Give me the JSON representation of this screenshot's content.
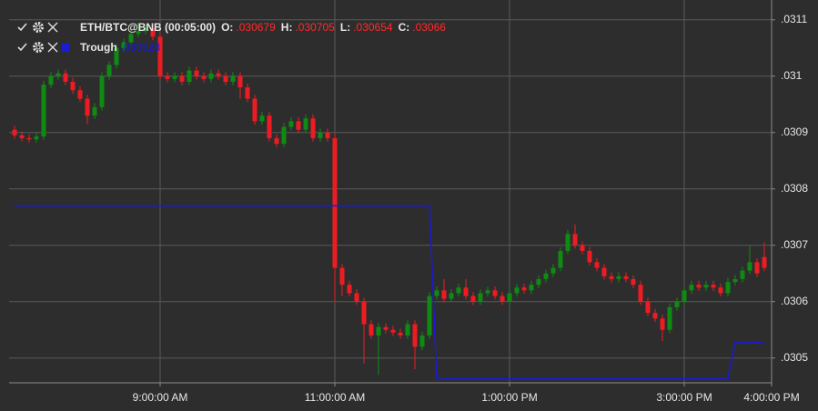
{
  "chart_data": {
    "type": "candlestick",
    "x": [
      "7:20:00 AM",
      "7:25:00 AM",
      "7:30:00 AM",
      "7:35:00 AM",
      "7:40:00 AM",
      "7:45:00 AM",
      "7:50:00 AM",
      "7:55:00 AM",
      "8:00:00 AM",
      "8:05:00 AM",
      "8:10:00 AM",
      "8:15:00 AM",
      "8:20:00 AM",
      "8:25:00 AM",
      "8:30:00 AM",
      "8:35:00 AM",
      "8:40:00 AM",
      "8:45:00 AM",
      "8:50:00 AM",
      "8:55:00 AM",
      "9:00:00 AM",
      "9:05:00 AM",
      "9:10:00 AM",
      "9:15:00 AM",
      "9:20:00 AM",
      "9:25:00 AM",
      "9:30:00 AM",
      "9:35:00 AM",
      "9:40:00 AM",
      "9:45:00 AM",
      "9:50:00 AM",
      "9:55:00 AM",
      "10:00:00 AM",
      "10:05:00 AM",
      "10:10:00 AM",
      "10:15:00 AM",
      "10:20:00 AM",
      "10:25:00 AM",
      "10:30:00 AM",
      "10:35:00 AM",
      "10:40:00 AM",
      "10:45:00 AM",
      "10:50:00 AM",
      "10:55:00 AM",
      "11:00:00 AM",
      "11:05:00 AM",
      "11:10:00 AM",
      "11:15:00 AM",
      "11:20:00 AM",
      "11:25:00 AM",
      "11:30:00 AM",
      "11:35:00 AM",
      "11:40:00 AM",
      "11:45:00 AM",
      "11:50:00 AM",
      "11:55:00 AM",
      "12:00:00 PM",
      "12:05:00 PM",
      "12:10:00 PM",
      "12:15:00 PM",
      "12:20:00 PM",
      "12:25:00 PM",
      "12:30:00 PM",
      "12:35:00 PM",
      "12:40:00 PM",
      "12:45:00 PM",
      "12:50:00 PM",
      "12:55:00 PM",
      "1:00:00 PM",
      "1:05:00 PM",
      "1:10:00 PM",
      "1:15:00 PM",
      "1:20:00 PM",
      "1:25:00 PM",
      "1:30:00 PM",
      "1:35:00 PM",
      "1:40:00 PM",
      "1:45:00 PM",
      "1:50:00 PM",
      "1:55:00 PM",
      "2:00:00 PM",
      "2:05:00 PM",
      "2:10:00 PM",
      "2:15:00 PM",
      "2:20:00 PM",
      "2:25:00 PM",
      "2:30:00 PM",
      "2:35:00 PM",
      "2:40:00 PM",
      "2:45:00 PM",
      "2:50:00 PM",
      "2:55:00 PM",
      "3:00:00 PM",
      "3:05:00 PM",
      "3:10:00 PM",
      "3:15:00 PM",
      "3:20:00 PM",
      "3:25:00 PM",
      "3:30:00 PM",
      "3:35:00 PM",
      "3:40:00 PM",
      "3:45:00 PM",
      "3:50:00 PM",
      "3:55:00 PM"
    ],
    "xlim": [
      "7:16:15 AM",
      "4:00:00 PM"
    ],
    "xticks": [
      "9:00:00 AM",
      "11:00:00 AM",
      "1:00:00 PM",
      "3:00:00 PM",
      "4:00:00 PM"
    ],
    "ylim": [
      0.030456,
      0.031119
    ],
    "yticks": [
      {
        "value": 0.0305,
        "label": ".0305"
      },
      {
        "value": 0.0306,
        "label": ".0306"
      },
      {
        "value": 0.0307,
        "label": ".0307"
      },
      {
        "value": 0.0308,
        "label": ".0308"
      },
      {
        "value": 0.0309,
        "label": ".0309"
      },
      {
        "value": 0.031,
        "label": ".031"
      },
      {
        "value": 0.0311,
        "label": ".0311"
      }
    ],
    "grid": true,
    "series": [
      {
        "name": "ETH/BTC@BNB (00:05:00)",
        "type": "candlestick",
        "up_color": "#0f8a12",
        "down_color": "#ee1c22",
        "open": [
          0.030905,
          0.030895,
          0.03089,
          0.030888,
          0.030893,
          0.030985,
          0.031,
          0.031005,
          0.03099,
          0.030975,
          0.03096,
          0.03093,
          0.030945,
          0.031,
          0.03102,
          0.03105,
          0.03106,
          0.031075,
          0.03108,
          0.031085,
          0.03107,
          0.031,
          0.030995,
          0.031,
          0.03099,
          0.03101,
          0.031,
          0.030995,
          0.031005,
          0.031,
          0.03099,
          0.031,
          0.03098,
          0.03096,
          0.03092,
          0.03093,
          0.03089,
          0.03088,
          0.03091,
          0.03092,
          0.030905,
          0.030925,
          0.03089,
          0.0309,
          0.03089,
          0.03066,
          0.03063,
          0.030615,
          0.0306,
          0.03056,
          0.03054,
          0.030555,
          0.03055,
          0.030545,
          0.03054,
          0.03056,
          0.03052,
          0.03054,
          0.03061,
          0.03062,
          0.030605,
          0.030615,
          0.030625,
          0.03061,
          0.0306,
          0.030615,
          0.03062,
          0.03061,
          0.0306,
          0.030615,
          0.030625,
          0.03062,
          0.03063,
          0.03064,
          0.03065,
          0.03066,
          0.03069,
          0.03072,
          0.0307,
          0.03069,
          0.03067,
          0.03066,
          0.030645,
          0.03064,
          0.030645,
          0.03064,
          0.03063,
          0.0306,
          0.03058,
          0.03057,
          0.03055,
          0.03059,
          0.0306,
          0.03062,
          0.03063,
          0.030625,
          0.03063,
          0.030625,
          0.030615,
          0.030635,
          0.03064,
          0.030655,
          0.03067,
          0.030679
        ],
        "high": [
          0.030912,
          0.030902,
          0.030897,
          0.0309,
          0.030992,
          0.031007,
          0.031012,
          0.031012,
          0.030997,
          0.030982,
          0.030967,
          0.030952,
          0.031007,
          0.031027,
          0.031057,
          0.031067,
          0.031082,
          0.031095,
          0.031092,
          0.031092,
          0.031077,
          0.031007,
          0.031007,
          0.031007,
          0.031017,
          0.031017,
          0.031007,
          0.031012,
          0.031012,
          0.031007,
          0.031007,
          0.031007,
          0.030987,
          0.030967,
          0.030937,
          0.030937,
          0.030897,
          0.030917,
          0.030927,
          0.030927,
          0.030932,
          0.030932,
          0.030907,
          0.030907,
          0.030897,
          0.030667,
          0.030637,
          0.030622,
          0.030607,
          0.030567,
          0.030562,
          0.030562,
          0.030557,
          0.030552,
          0.030567,
          0.030567,
          0.030547,
          0.030617,
          0.030627,
          0.03064,
          0.030622,
          0.030632,
          0.03064,
          0.030617,
          0.030622,
          0.030627,
          0.030627,
          0.030617,
          0.030622,
          0.030632,
          0.030632,
          0.030637,
          0.030647,
          0.030657,
          0.030667,
          0.030697,
          0.030727,
          0.030737,
          0.030707,
          0.030697,
          0.030677,
          0.030667,
          0.030652,
          0.030652,
          0.030652,
          0.030647,
          0.030637,
          0.030607,
          0.030587,
          0.030577,
          0.030597,
          0.030607,
          0.030627,
          0.030637,
          0.030637,
          0.030637,
          0.030637,
          0.030632,
          0.030642,
          0.030647,
          0.030662,
          0.0307,
          0.030677,
          0.030705
        ],
        "low": [
          0.030889,
          0.030884,
          0.030882,
          0.030882,
          0.030887,
          0.030979,
          0.030994,
          0.030984,
          0.030969,
          0.030954,
          0.030915,
          0.030924,
          0.030939,
          0.030994,
          0.031014,
          0.031044,
          0.031054,
          0.031069,
          0.031074,
          0.031064,
          0.030994,
          0.030989,
          0.030989,
          0.030984,
          0.030984,
          0.030994,
          0.030989,
          0.030989,
          0.030994,
          0.030984,
          0.030984,
          0.03096,
          0.030954,
          0.030914,
          0.030914,
          0.030884,
          0.030874,
          0.030874,
          0.030904,
          0.030899,
          0.030899,
          0.030884,
          0.030884,
          0.030884,
          0.0306,
          0.03061,
          0.030609,
          0.030594,
          0.03049,
          0.030534,
          0.03047,
          0.030544,
          0.030539,
          0.030534,
          0.030534,
          0.03048,
          0.030514,
          0.030534,
          0.030604,
          0.030599,
          0.030599,
          0.030609,
          0.030604,
          0.030594,
          0.030594,
          0.030609,
          0.030604,
          0.030594,
          0.030594,
          0.030609,
          0.030614,
          0.030614,
          0.030624,
          0.030634,
          0.030644,
          0.030654,
          0.030684,
          0.030694,
          0.030684,
          0.030664,
          0.030654,
          0.030639,
          0.030634,
          0.030634,
          0.030634,
          0.030624,
          0.030594,
          0.030574,
          0.030564,
          0.03053,
          0.030544,
          0.030584,
          0.030594,
          0.030614,
          0.030619,
          0.030619,
          0.030619,
          0.030609,
          0.030609,
          0.030629,
          0.030634,
          0.030649,
          0.030644,
          0.030654
        ],
        "close": [
          0.030895,
          0.03089,
          0.030888,
          0.030893,
          0.030985,
          0.031,
          0.031005,
          0.03099,
          0.030975,
          0.03096,
          0.03093,
          0.030945,
          0.031,
          0.03102,
          0.03105,
          0.03106,
          0.031075,
          0.03108,
          0.031085,
          0.03107,
          0.031,
          0.030995,
          0.031,
          0.03099,
          0.03101,
          0.031,
          0.030995,
          0.031005,
          0.031,
          0.03099,
          0.031,
          0.03098,
          0.03096,
          0.03092,
          0.03093,
          0.03089,
          0.03088,
          0.03091,
          0.03092,
          0.030905,
          0.030925,
          0.03089,
          0.0309,
          0.03089,
          0.03066,
          0.03063,
          0.030615,
          0.0306,
          0.03056,
          0.03054,
          0.030555,
          0.03055,
          0.030545,
          0.03054,
          0.03056,
          0.03052,
          0.03054,
          0.03061,
          0.03062,
          0.030605,
          0.030615,
          0.030625,
          0.03061,
          0.0306,
          0.030615,
          0.03062,
          0.03061,
          0.0306,
          0.030615,
          0.030625,
          0.03062,
          0.03063,
          0.03064,
          0.03065,
          0.03066,
          0.03069,
          0.03072,
          0.0307,
          0.03069,
          0.03067,
          0.03066,
          0.030645,
          0.03064,
          0.030645,
          0.03064,
          0.03063,
          0.0306,
          0.03058,
          0.03057,
          0.03055,
          0.03059,
          0.0306,
          0.03062,
          0.03063,
          0.030625,
          0.03063,
          0.030625,
          0.030615,
          0.030635,
          0.03064,
          0.030655,
          0.03067,
          0.03065,
          0.03066
        ]
      },
      {
        "name": "Trough",
        "type": "line",
        "color": "#1a1ad8",
        "values": [
          0.03077,
          0.03077,
          0.03077,
          0.03077,
          0.03077,
          0.03077,
          0.03077,
          0.03077,
          0.03077,
          0.03077,
          0.03077,
          0.03077,
          0.03077,
          0.03077,
          0.03077,
          0.03077,
          0.03077,
          0.03077,
          0.03077,
          0.03077,
          0.03077,
          0.03077,
          0.03077,
          0.03077,
          0.03077,
          0.03077,
          0.03077,
          0.03077,
          0.03077,
          0.03077,
          0.03077,
          0.03077,
          0.03077,
          0.03077,
          0.03077,
          0.03077,
          0.03077,
          0.03077,
          0.03077,
          0.03077,
          0.03077,
          0.03077,
          0.03077,
          0.03077,
          0.03077,
          0.03077,
          0.03077,
          0.03077,
          0.03077,
          0.03077,
          0.03077,
          0.03077,
          0.03077,
          0.03077,
          0.03077,
          0.03077,
          0.03077,
          0.03077,
          0.030463,
          0.030463,
          0.030463,
          0.030463,
          0.030463,
          0.030463,
          0.030463,
          0.030463,
          0.030463,
          0.030463,
          0.030463,
          0.030463,
          0.030463,
          0.030463,
          0.030463,
          0.030463,
          0.030463,
          0.030463,
          0.030463,
          0.030463,
          0.030463,
          0.030463,
          0.030463,
          0.030463,
          0.030463,
          0.030463,
          0.030463,
          0.030463,
          0.030463,
          0.030463,
          0.030463,
          0.030463,
          0.030463,
          0.030463,
          0.030463,
          0.030463,
          0.030463,
          0.030463,
          0.030463,
          0.030463,
          0.030463,
          0.030528,
          0.030528,
          0.030528,
          0.030528,
          0.030528
        ]
      }
    ],
    "header": {
      "labels": [
        "O:",
        "H:",
        "L:",
        "C:"
      ],
      "values": [
        {
          "value": 0.030679,
          "label": ".030679"
        },
        {
          "value": 0.030705,
          "label": ".030705"
        },
        {
          "value": 0.030654,
          "label": ".030654"
        },
        {
          "value": 0.03066,
          "label": ".03066"
        }
      ],
      "value_color": "#ff2a2a"
    },
    "trough_value": {
      "value": 0.030528,
      "label": ".030528"
    }
  }
}
